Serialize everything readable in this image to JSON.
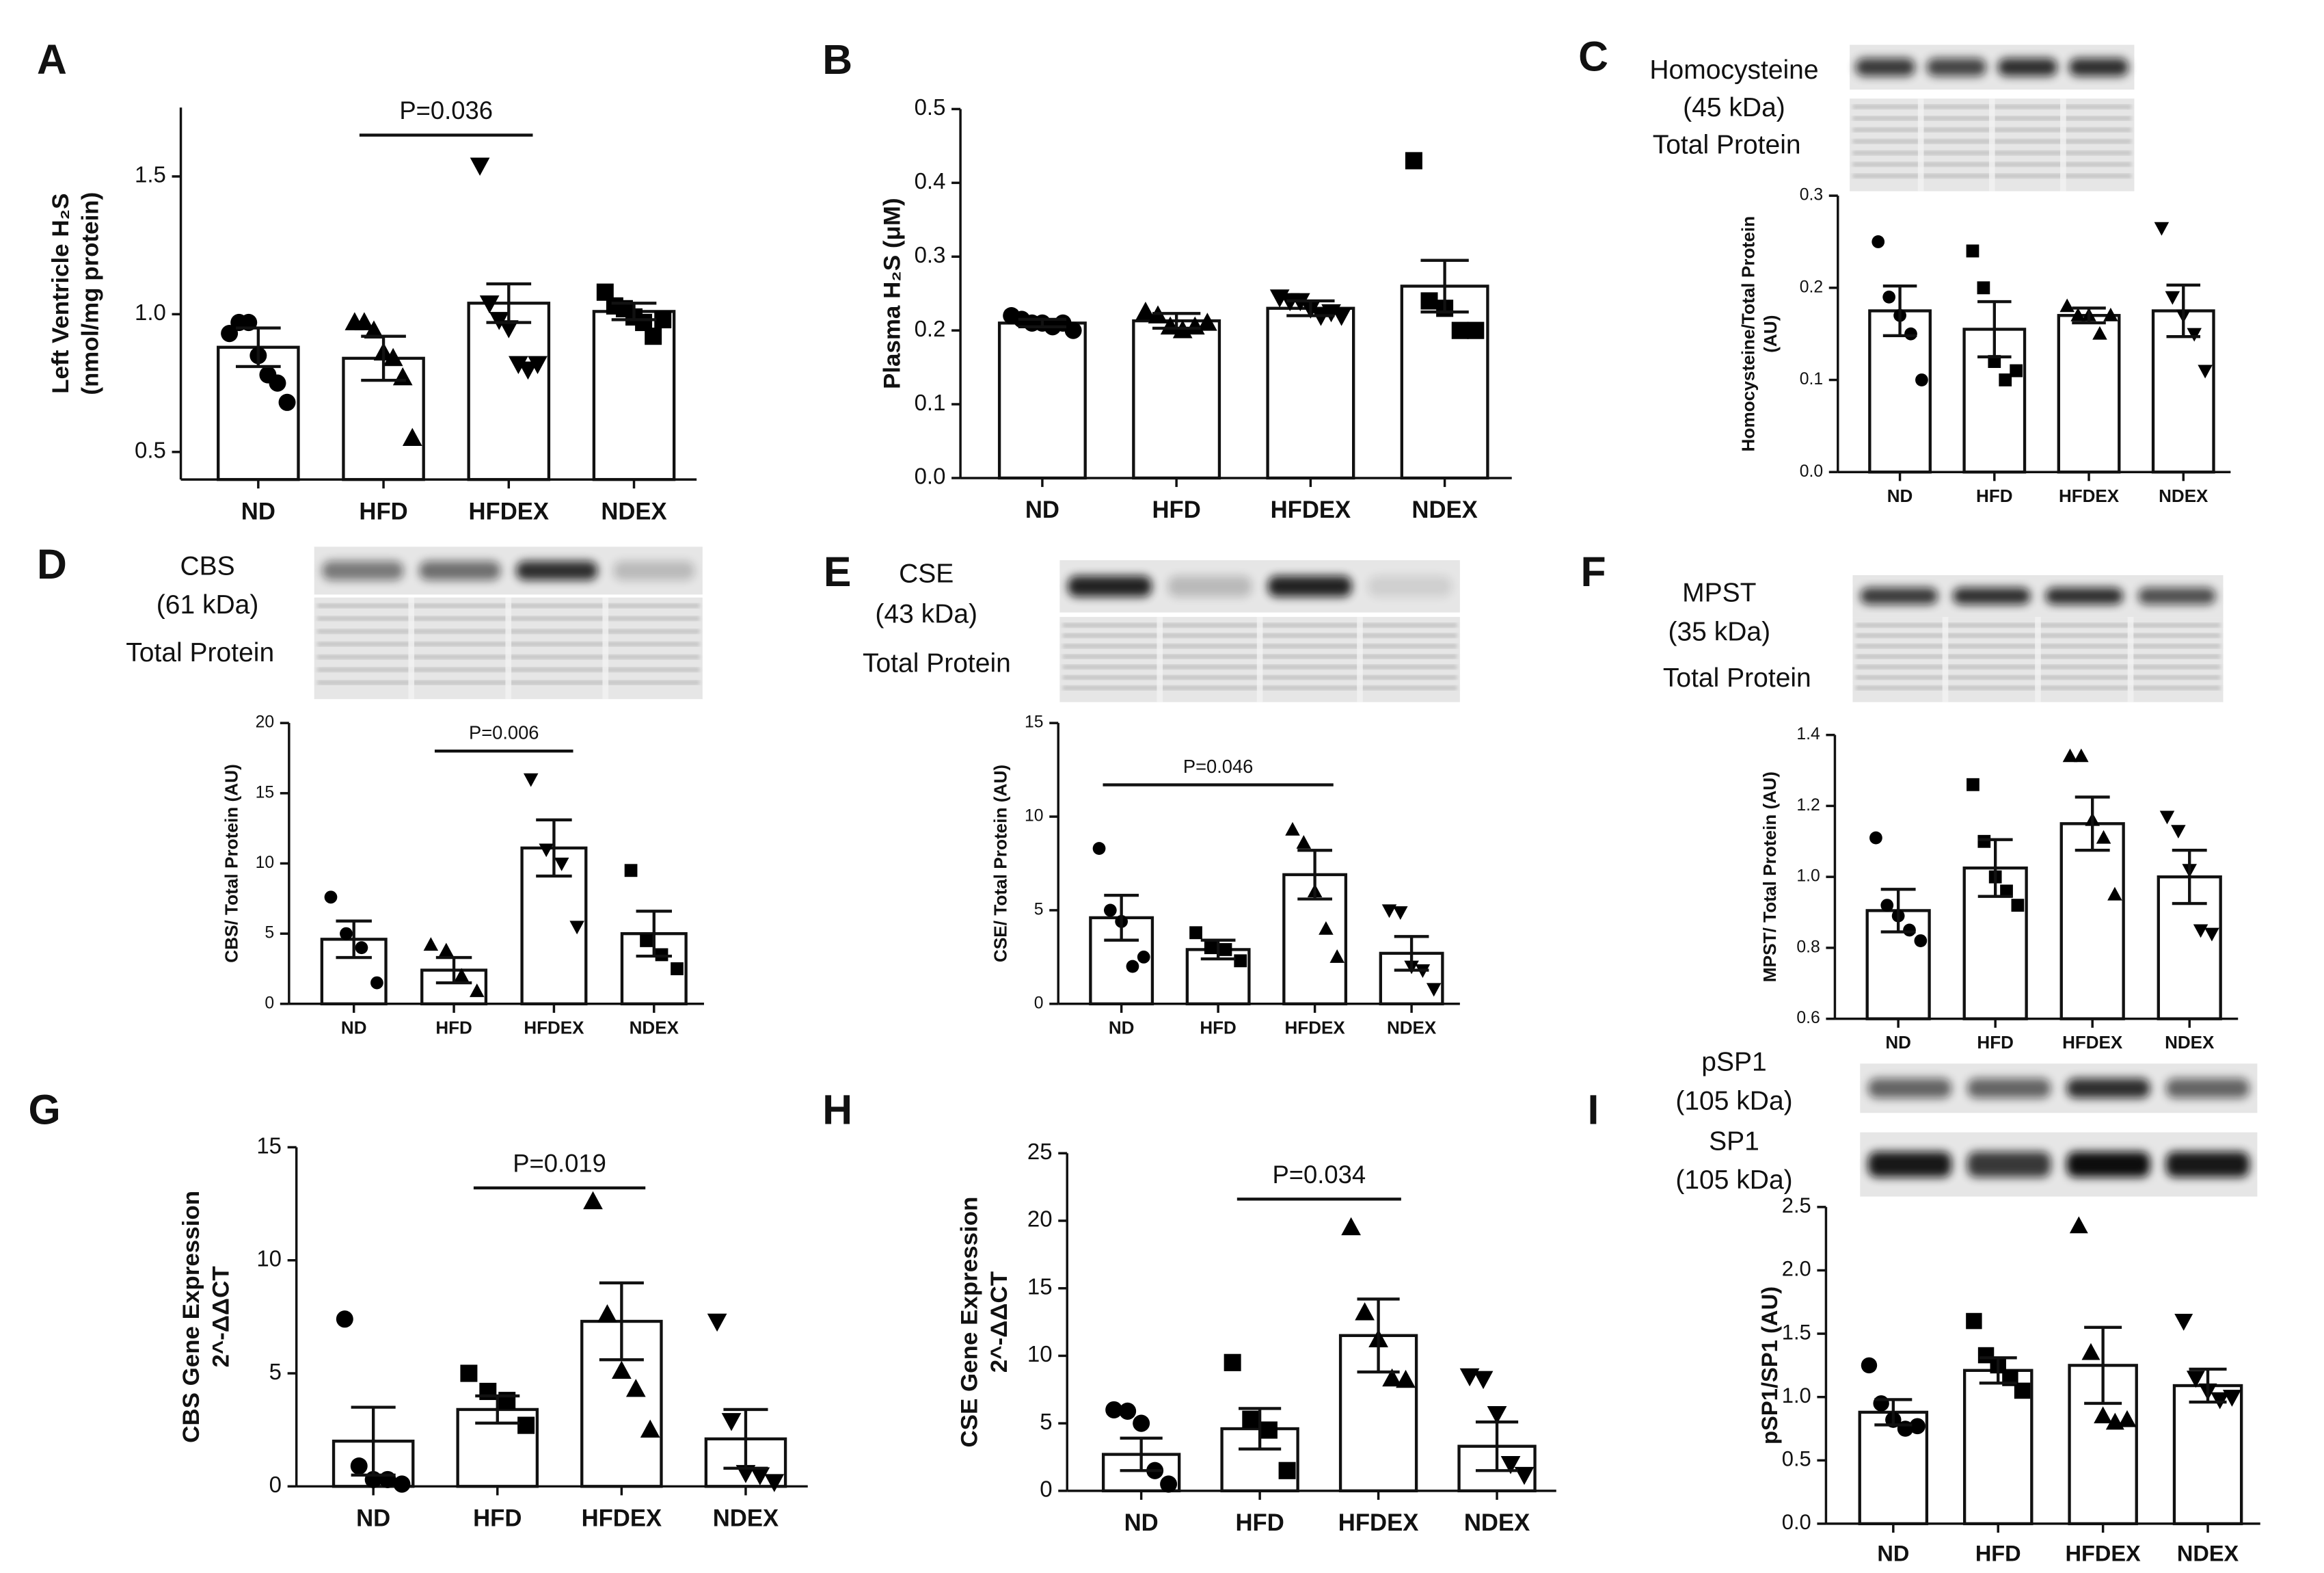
{
  "chart_data": [
    {
      "type": "bar",
      "panel": "A",
      "ylabel": [
        "Left Ventricle H₂S",
        "(nmol/mg protein)"
      ],
      "categories": [
        "ND",
        "HFD",
        "HFDEX",
        "NDEX"
      ],
      "values": [
        0.88,
        0.84,
        1.04,
        1.01
      ],
      "errors": [
        0.07,
        0.08,
        0.07,
        0.03
      ],
      "points": [
        [
          0.93,
          0.97,
          0.97,
          0.85,
          0.78,
          0.75,
          0.68
        ],
        [
          0.97,
          0.97,
          0.94,
          0.86,
          0.84,
          0.77,
          0.55
        ],
        [
          1.54,
          1.04,
          0.98,
          0.95,
          0.82,
          0.8,
          0.82
        ],
        [
          1.08,
          1.03,
          1.02,
          0.99,
          0.97,
          0.92,
          0.98
        ]
      ],
      "markers": [
        "circle",
        "triangle",
        "triangle-down",
        "square"
      ],
      "ylim": [
        0.4,
        1.75
      ],
      "yticks": [
        0.5,
        {
          "value": 1,
          "label": "1.0"
        },
        1.5
      ],
      "annotation": {
        "label": "P=0.036",
        "from": "HFD",
        "to": "HFDEX",
        "y": 1.65
      }
    },
    {
      "type": "bar",
      "panel": "B",
      "ylabel": [
        "Plasma H₂S (μM)"
      ],
      "categories": [
        "ND",
        "HFD",
        "HFDEX",
        "NDEX"
      ],
      "values": [
        0.21,
        0.213,
        0.23,
        0.26
      ],
      "errors": [
        0.005,
        0.01,
        0.01,
        0.035
      ],
      "points": [
        [
          0.22,
          0.215,
          0.21,
          0.21,
          0.205,
          0.21,
          0.2
        ],
        [
          0.225,
          0.22,
          0.205,
          0.2,
          0.205,
          0.21
        ],
        [
          0.245,
          0.24,
          0.24,
          0.23,
          0.22,
          0.225,
          0.22
        ],
        [
          0.43,
          0.24,
          0.23,
          0.2,
          0.2
        ]
      ],
      "markers": [
        "circle",
        "triangle",
        "triangle-down",
        "square"
      ],
      "ylim": [
        0,
        0.5
      ],
      "yticks": [
        {
          "value": 0,
          "label": "0.0"
        },
        0.1,
        0.2,
        0.3,
        0.4,
        0.5
      ]
    },
    {
      "type": "bar",
      "panel": "C",
      "ylabel": [
        "Homocysteine/Total Protein",
        "(AU)"
      ],
      "blot_labels": [
        "Homocysteine",
        "(45 kDa)",
        "Total Protein"
      ],
      "categories": [
        "ND",
        "HFD",
        "HFDEX",
        "NDEX"
      ],
      "values": [
        0.175,
        0.155,
        0.17,
        0.175
      ],
      "errors": [
        0.027,
        0.03,
        0.008,
        0.028
      ],
      "points": [
        [
          0.25,
          0.19,
          0.17,
          0.15,
          0.1
        ],
        [
          0.24,
          0.2,
          0.12,
          0.1,
          0.11
        ],
        [
          0.18,
          0.17,
          0.17,
          0.15,
          0.17
        ],
        [
          0.265,
          0.19,
          0.17,
          0.15,
          0.11
        ]
      ],
      "markers": [
        "circle",
        "square",
        "triangle",
        "triangle-down"
      ],
      "ylim": [
        0,
        0.3
      ],
      "yticks": [
        {
          "value": 0,
          "label": "0.0"
        },
        0.1,
        0.2,
        0.3
      ]
    },
    {
      "type": "bar",
      "panel": "D",
      "ylabel": [
        "CBS/ Total Protein (AU)"
      ],
      "blot_labels": [
        "CBS",
        "(61 kDa)",
        "Total Protein"
      ],
      "categories": [
        "ND",
        "HFD",
        "HFDEX",
        "NDEX"
      ],
      "values": [
        4.6,
        2.4,
        11.1,
        5.0
      ],
      "errors": [
        1.3,
        0.9,
        2.0,
        1.6
      ],
      "points": [
        [
          7.6,
          5,
          4,
          1.5
        ],
        [
          4.2,
          3.8,
          2,
          0.9
        ],
        [
          16,
          11,
          10,
          5.5
        ],
        [
          9.5,
          4.5,
          3.5,
          2.5
        ]
      ],
      "markers": [
        "circle",
        "triangle",
        "triangle-down",
        "square"
      ],
      "ylim": [
        0,
        20
      ],
      "yticks": [
        0,
        5,
        10,
        15,
        20
      ],
      "annotation": {
        "label": "P=0.006",
        "from": "HFD",
        "to": "HFDEX",
        "y": 18
      }
    },
    {
      "type": "bar",
      "panel": "E",
      "ylabel": [
        "CSE/ Total Protein (AU)"
      ],
      "blot_labels": [
        "CSE",
        "(43 kDa)",
        "Total Protein"
      ],
      "categories": [
        "ND",
        "HFD",
        "HFDEX",
        "NDEX"
      ],
      "values": [
        4.6,
        2.9,
        6.9,
        2.7
      ],
      "errors": [
        1.2,
        0.5,
        1.3,
        0.9
      ],
      "points": [
        [
          8.3,
          5,
          4.4,
          2,
          2.5
        ],
        [
          3.8,
          3.0,
          2.9,
          2.3
        ],
        [
          9.3,
          8.6,
          6,
          4,
          2.5
        ],
        [
          5.0,
          4.9,
          2,
          1.8,
          0.8
        ]
      ],
      "markers": [
        "circle",
        "square",
        "triangle",
        "triangle-down"
      ],
      "ylim": [
        0,
        15
      ],
      "yticks": [
        0,
        5,
        10,
        15
      ],
      "annotation": {
        "label": "P=0.046",
        "from": "ND",
        "to": "HFDEX",
        "y": 11.7
      }
    },
    {
      "type": "bar",
      "panel": "F",
      "ylabel": [
        "MPST/ Total Protein (AU)"
      ],
      "blot_labels": [
        "MPST",
        "(35 kDa)",
        "Total Protein"
      ],
      "categories": [
        "ND",
        "HFD",
        "HFDEX",
        "NDEX"
      ],
      "values": [
        0.905,
        1.025,
        1.15,
        1.0
      ],
      "errors": [
        0.06,
        0.08,
        0.075,
        0.075
      ],
      "points": [
        [
          1.11,
          0.92,
          0.89,
          0.85,
          0.82
        ],
        [
          1.26,
          1.1,
          1.0,
          0.96,
          0.92
        ],
        [
          1.34,
          1.34,
          1.16,
          1.11,
          0.95
        ],
        [
          1.17,
          1.13,
          1.02,
          0.85,
          0.84
        ]
      ],
      "markers": [
        "circle",
        "square",
        "triangle",
        "triangle-down"
      ],
      "ylim": [
        0.6,
        1.4
      ],
      "yticks": [
        0.6,
        0.8,
        {
          "value": 1,
          "label": "1.0"
        },
        1.2,
        1.4
      ]
    },
    {
      "type": "bar",
      "panel": "G",
      "ylabel": [
        "CBS Gene Expression",
        "2^-ΔΔCT"
      ],
      "categories": [
        "ND",
        "HFD",
        "HFDEX",
        "NDEX"
      ],
      "values": [
        2.0,
        3.4,
        7.3,
        2.1
      ],
      "errors": [
        1.5,
        0.6,
        1.7,
        1.3
      ],
      "points": [
        [
          7.4,
          0.9,
          0.3,
          0.3,
          0.1
        ],
        [
          5.0,
          4.2,
          3.8,
          2.7
        ],
        [
          12.6,
          7.6,
          5.1,
          4.3,
          2.5
        ],
        [
          7.3,
          2.9,
          0.6,
          0.5,
          0.2
        ]
      ],
      "markers": [
        "circle",
        "square",
        "triangle",
        "triangle-down"
      ],
      "ylim": [
        0,
        15
      ],
      "yticks": [
        0,
        5,
        10,
        15
      ],
      "annotation": {
        "label": "P=0.019",
        "from": "HFD",
        "to": "HFDEX",
        "y": 13.2
      }
    },
    {
      "type": "bar",
      "panel": "H",
      "ylabel": [
        "CSE Gene Expression",
        "2^-ΔΔCT"
      ],
      "categories": [
        "ND",
        "HFD",
        "HFDEX",
        "NDEX"
      ],
      "values": [
        2.7,
        4.6,
        11.5,
        3.3
      ],
      "errors": [
        1.2,
        1.5,
        2.7,
        1.8
      ],
      "points": [
        [
          6,
          5.9,
          5,
          1.5,
          0.5
        ],
        [
          9.5,
          5.3,
          4.5,
          1.5
        ],
        [
          19.5,
          13.2,
          11.2,
          8.3,
          8.2
        ],
        [
          8.5,
          8.3,
          5.7,
          2,
          1.2
        ]
      ],
      "markers": [
        "circle",
        "square",
        "triangle",
        "triangle-down"
      ],
      "ylim": [
        0,
        25
      ],
      "yticks": [
        0,
        5,
        10,
        15,
        20,
        25
      ],
      "annotation": {
        "label": "P=0.034",
        "from": "HFD",
        "to": "HFDEX",
        "y": 21.6
      }
    },
    {
      "type": "bar",
      "panel": "I",
      "ylabel": [
        "pSP1/SP1 (AU)"
      ],
      "blot_labels": [
        "pSP1",
        "(105 kDa)",
        "SP1",
        "(105 kDa)"
      ],
      "categories": [
        "ND",
        "HFD",
        "HFDEX",
        "NDEX"
      ],
      "values": [
        0.88,
        1.21,
        1.25,
        1.09
      ],
      "errors": [
        0.1,
        0.1,
        0.3,
        0.13
      ],
      "points": [
        [
          1.25,
          0.95,
          0.82,
          0.75,
          0.77
        ],
        [
          1.6,
          1.33,
          1.25,
          1.15,
          1.05
        ],
        [
          2.35,
          1.35,
          0.85,
          0.8,
          0.82
        ],
        [
          1.6,
          1.15,
          1.05,
          0.98,
          1.0
        ]
      ],
      "markers": [
        "circle",
        "square",
        "triangle",
        "triangle-down"
      ],
      "ylim": [
        0,
        2.5
      ],
      "yticks": [
        {
          "value": 0,
          "label": "0.0"
        },
        0.5,
        {
          "value": 1,
          "label": "1.0"
        },
        1.5,
        {
          "value": 2,
          "label": "2.0"
        },
        2.5
      ]
    }
  ]
}
